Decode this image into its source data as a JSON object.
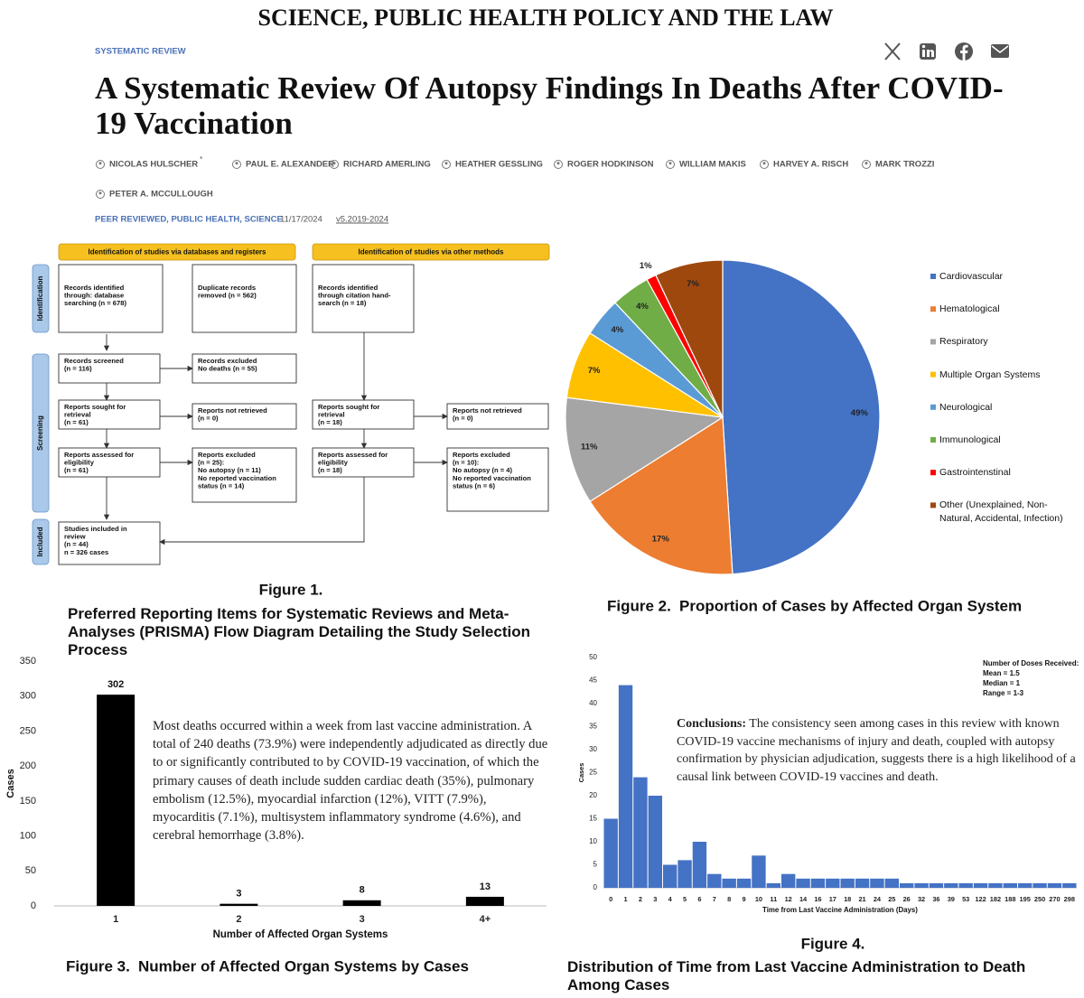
{
  "header": {
    "publication": "SCIENCE, PUBLIC HEALTH POLICY AND THE LAW",
    "section": "SYSTEMATIC REVIEW",
    "title": "A Systematic Review Of Autopsy Findings In Deaths After COVID-19 Vaccination",
    "authors": [
      "NICOLAS HULSCHER",
      "PAUL E. ALEXANDER",
      "RICHARD AMERLING",
      "HEATHER GESSLING",
      "ROGER HODKINSON",
      "WILLIAM MAKIS",
      "HARVEY A. RISCH",
      "MARK TROZZI",
      "PETER A. MCCULLOUGH"
    ],
    "author_mark": "*",
    "tags": "PEER REVIEWED, PUBLIC HEALTH, SCIENCE",
    "date": "11/17/2024",
    "version": "v5.2019-2024"
  },
  "prisma": {
    "figure": "Figure 1.",
    "caption": "Preferred Reporting Items for Systematic Reviews and Meta-Analyses (PRISMA) Flow Diagram Detailing the Study Selection Process",
    "headers": [
      "Identification of studies via databases and registers",
      "Identification of studies via other methods"
    ],
    "phases": [
      "Identification",
      "Screening",
      "Included"
    ],
    "boxes": [
      {
        "lines": [
          "Records identified",
          "through: database",
          "searching (n = 678)"
        ]
      },
      {
        "lines": [
          "Duplicate records",
          "removed (n = 562)"
        ]
      },
      {
        "lines": [
          "Records identified",
          "through citation hand-",
          "search (n = 18)"
        ]
      },
      {
        "lines": [
          "Records screened",
          "(n = 116)"
        ]
      },
      {
        "lines": [
          "Records excluded",
          "No deaths (n = 55)"
        ]
      },
      {
        "lines": [
          "Reports sought for",
          "retrieval",
          "(n = 61)"
        ]
      },
      {
        "lines": [
          "Reports not retrieved",
          "(n = 0)"
        ]
      },
      {
        "lines": [
          "Reports assessed for",
          "eligibility",
          "(n = 61)"
        ]
      },
      {
        "lines": [
          "Reports excluded",
          "(n = 25):",
          "No autopsy (n = 11)",
          "No reported vaccination",
          "status (n = 14)"
        ]
      },
      {
        "lines": [
          "Reports sought for",
          "retrieval",
          "(n = 18)"
        ]
      },
      {
        "lines": [
          "Reports not retrieved",
          "(n = 0)"
        ]
      },
      {
        "lines": [
          "Reports assessed for",
          "eligibility",
          "(n = 18)"
        ]
      },
      {
        "lines": [
          "Reports excluded",
          "(n = 10):",
          "No autopsy (n = 4)",
          "No reported vaccination",
          "status (n = 6)"
        ]
      },
      {
        "lines": [
          "Studies included in",
          "review",
          "(n = 44)",
          "n = 326 cases"
        ]
      }
    ]
  },
  "chart_data": [
    {
      "type": "pie",
      "figure": "Figure 2.",
      "caption": "Proportion of Cases by Affected Organ System",
      "categories": [
        "Cardiovascular",
        "Hematological",
        "Respiratory",
        "Multiple Organ Systems",
        "Neurological",
        "Immunological",
        "Gastrointenstinal",
        "Other (Unexplained, Non-Natural, Accidental, Infection)"
      ],
      "values": [
        49,
        17,
        11,
        7,
        4,
        4,
        1,
        7
      ],
      "value_labels": [
        "49%",
        "17%",
        "11%",
        "7%",
        "4%",
        "4%",
        "1%",
        "7%"
      ],
      "colors": [
        "#4472c4",
        "#ed7d31",
        "#a5a5a5",
        "#ffc000",
        "#5b9bd5",
        "#70ad47",
        "#ff0000",
        "#9e480e"
      ],
      "legend": "right"
    },
    {
      "type": "bar",
      "figure": "Figure 3.",
      "caption": "Number of Affected Organ Systems by Cases",
      "x_label": "Number of Affected Organ Systems",
      "y_label": "Cases",
      "categories": [
        "1",
        "2",
        "3",
        "4+"
      ],
      "values": [
        302,
        3,
        8,
        13
      ],
      "color": "#000000",
      "ylim": [
        0,
        350
      ],
      "yticks": [
        0,
        50,
        100,
        150,
        200,
        250,
        300,
        350
      ],
      "data_labels": true,
      "grid": false,
      "note": "Most deaths occurred within a week from last vaccine administration. A total of 240 deaths (73.9%) were independently adjudicated as directly due to or significantly contributed to by COVID-19 vaccination, of which the primary causes of death include sudden cardiac death (35%), pulmonary embolism (12.5%), myocardial infarction (12%), VITT (7.9%), myocarditis (7.1%), multisystem inflammatory syndrome (4.6%), and cerebral hemorrhage (3.8%)."
    },
    {
      "type": "bar",
      "figure": "Figure 4.",
      "caption": "Distribution of Time from Last Vaccine Administration to Death Among Cases",
      "x_label": "Time from Last Vaccine Administration (Days)",
      "y_label": "Cases",
      "categories": [
        "0",
        "1",
        "2",
        "3",
        "4",
        "5",
        "6",
        "7",
        "8",
        "9",
        "10",
        "11",
        "12",
        "14",
        "16",
        "17",
        "18",
        "21",
        "24",
        "25",
        "26",
        "32",
        "36",
        "39",
        "53",
        "122",
        "182",
        "188",
        "195",
        "250",
        "270",
        "298"
      ],
      "values": [
        15,
        44,
        24,
        20,
        5,
        6,
        10,
        3,
        2,
        2,
        7,
        1,
        3,
        2,
        2,
        2,
        2,
        2,
        2,
        2,
        1,
        1,
        1,
        1,
        1,
        1,
        1,
        1,
        1,
        1,
        1,
        1
      ],
      "color": "#4472c4",
      "ylim": [
        0,
        50
      ],
      "yticks": [
        0,
        5,
        10,
        15,
        20,
        25,
        30,
        35,
        40,
        45,
        50
      ],
      "data_labels": false,
      "grid": false,
      "annotation": {
        "title": "Number of Doses Received:",
        "lines": [
          "Mean = 1.5",
          "Median = 1",
          "Range = 1-3"
        ]
      },
      "conclusion": {
        "label": "Conclusions:",
        "text": "The consistency seen among cases in this review with known COVID-19 vaccine mechanisms of injury and death, coupled with autopsy confirmation by physician adjudication, suggests there is a high likelihood of a causal link between COVID-19 vaccines and death."
      }
    }
  ]
}
